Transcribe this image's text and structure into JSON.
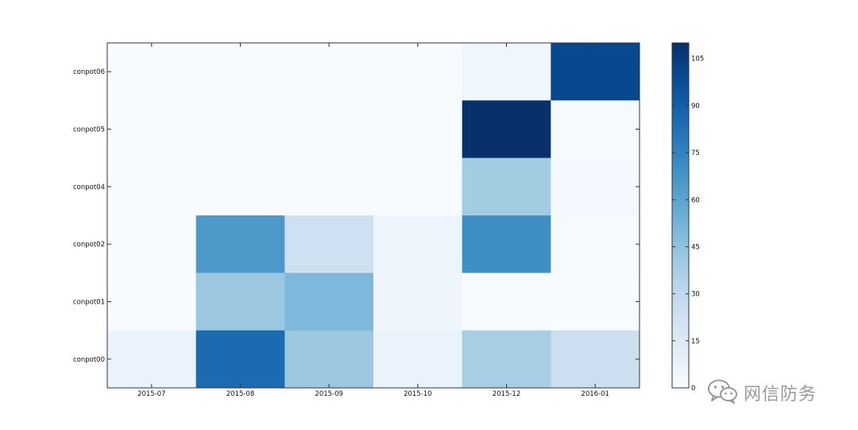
{
  "chart_data": {
    "type": "heatmap",
    "title": "",
    "xlabel": "",
    "ylabel": "",
    "x_categories": [
      "2015-07",
      "2015-08",
      "2015-09",
      "2015-10",
      "2015-12",
      "2016-01"
    ],
    "y_categories": [
      "conpot06",
      "conpot05",
      "conpot04",
      "conpot02",
      "conpot01",
      "conpot00"
    ],
    "values": [
      [
        0,
        0,
        0,
        0,
        4,
        100
      ],
      [
        0,
        0,
        0,
        0,
        113,
        1
      ],
      [
        0,
        0,
        0,
        0,
        40,
        2
      ],
      [
        0,
        65,
        23,
        6,
        70,
        1
      ],
      [
        0,
        42,
        50,
        5,
        0,
        0
      ],
      [
        7,
        85,
        42,
        7,
        38,
        24
      ]
    ],
    "colorbar": {
      "min": 0,
      "max": 110,
      "ticks": [
        0,
        15,
        30,
        45,
        60,
        75,
        90,
        105
      ]
    },
    "colormap": "Blues"
  },
  "watermark": {
    "text": "网信防务",
    "icon": "wechat-icon",
    "color": "#9a9a9a"
  }
}
